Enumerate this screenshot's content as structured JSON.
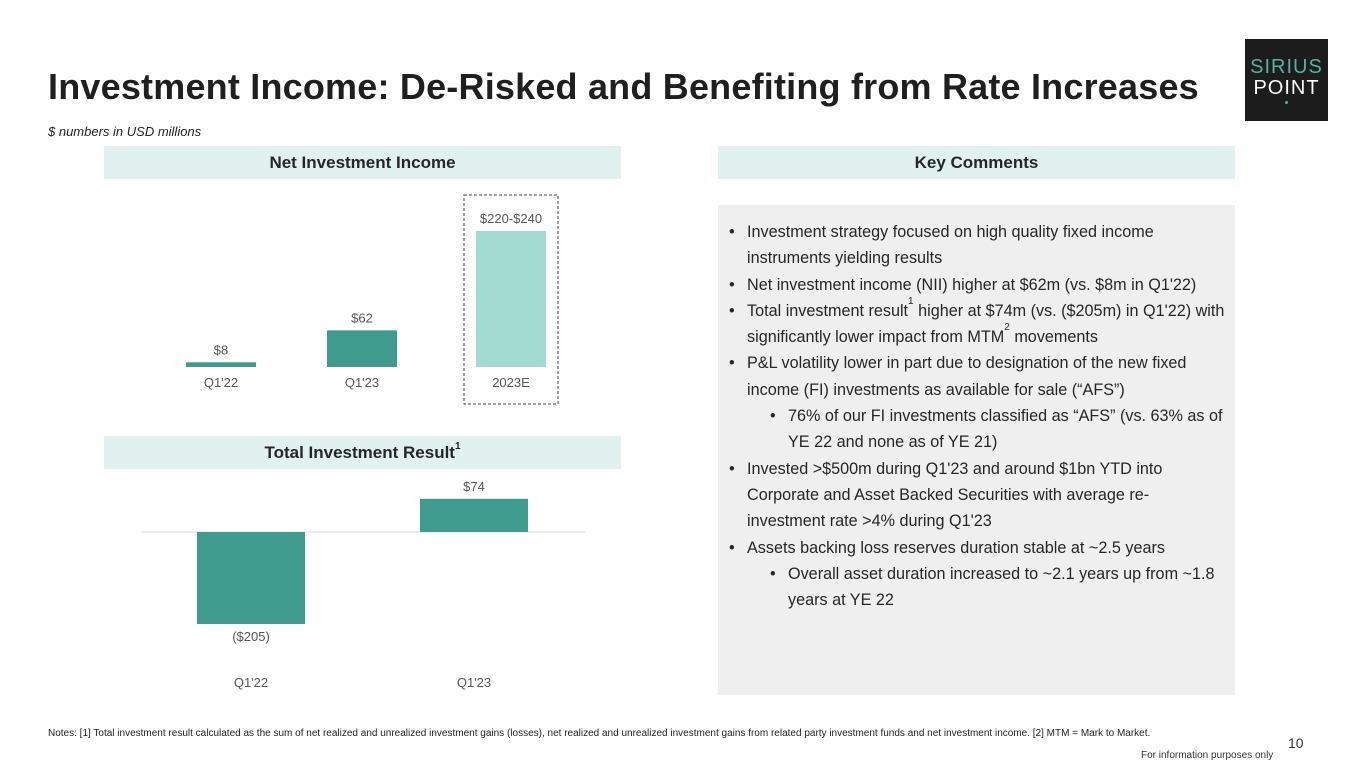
{
  "slide": {
    "title": "Investment Income: De-Risked and Benefiting from Rate Increases",
    "subtitle": "$ numbers in USD millions",
    "page_number": "10",
    "disclaimer": "For information purposes only",
    "notes": "Notes: [1] Total investment result calculated as the sum of net realized and unrealized investment gains (losses), net realized and unrealized investment gains from related party investment funds and net investment income. [2] MTM = Mark to Market."
  },
  "logo": {
    "line1": "SIRIUS",
    "line2": "POINT"
  },
  "panels": {
    "nii_header": "Net Investment Income",
    "tir_header": "Total Investment Result",
    "tir_header_sup": "1",
    "kc_header": "Key Comments"
  },
  "chart_data": [
    {
      "type": "bar",
      "title": "Net Investment Income",
      "categories": [
        "Q1'22",
        "Q1'23",
        "2023E"
      ],
      "values": [
        8,
        62,
        230
      ],
      "data_labels": [
        "$8",
        "$62",
        "$220-$240"
      ],
      "highlight": "2023E",
      "range": [
        220,
        240
      ],
      "xlabel": "",
      "ylabel": ""
    },
    {
      "type": "bar",
      "title": "Total Investment Result",
      "categories": [
        "Q1'22",
        "Q1'23"
      ],
      "values": [
        -205,
        74
      ],
      "data_labels": [
        "($205)",
        "$74"
      ],
      "xlabel": "",
      "ylabel": ""
    }
  ],
  "comments": {
    "items": [
      {
        "level": 1,
        "text": "Investment strategy focused on high quality fixed income instruments yielding results"
      },
      {
        "level": 1,
        "text": "Net investment income (NII) higher at $62m (vs. $8m in Q1'22)"
      },
      {
        "level": 1,
        "text_a": "Total investment result",
        "sup_a": "1",
        "text_b": " higher at $74m (vs. ($205m) in Q1'22) with significantly lower impact from MTM",
        "sup_b": "2",
        "text_c": " movements"
      },
      {
        "level": 1,
        "text": "P&L volatility lower in part due to designation of the new fixed income (FI) investments as available for sale (“AFS”)"
      },
      {
        "level": 2,
        "text": "76% of our FI investments classified as “AFS” (vs. 63% as of YE 22 and none as of YE 21)"
      },
      {
        "level": 1,
        "text": "Invested >$500m during Q1'23 and around $1bn YTD into Corporate and Asset Backed Securities with average re-investment rate >4% during Q1'23"
      },
      {
        "level": 1,
        "text": "Assets backing loss reserves duration stable at ~2.5 years"
      },
      {
        "level": 2,
        "text": "Overall asset duration increased to ~2.1 years up from ~1.8 years at YE 22"
      }
    ]
  },
  "colors": {
    "bar": "#3f9b8e",
    "bar_estimate": "#a3dbd3",
    "header_bg": "#e1f1ef",
    "comments_bg": "#efefef",
    "logo_bg": "#1c1c1c",
    "logo_accent": "#58b0a3"
  }
}
